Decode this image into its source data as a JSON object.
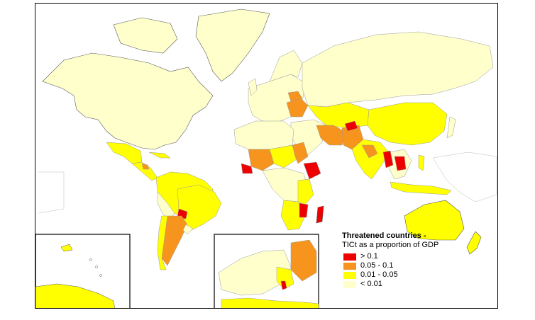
{
  "legend": {
    "title": "Threatened countries -",
    "subtitle": "TICt as a proportion of GDP",
    "items": [
      {
        "label": "> 0.1",
        "color": "#ee0000"
      },
      {
        "label": "0.05 - 0.1",
        "color": "#f7941d"
      },
      {
        "label": "0.01 - 0.05",
        "color": "#ffff00"
      },
      {
        "label": "< 0.01",
        "color": "#ffffcc"
      }
    ]
  },
  "colors": {
    "ocean": "#ffffff",
    "border": "#000000",
    "country_stroke": "#bdbdbd"
  }
}
